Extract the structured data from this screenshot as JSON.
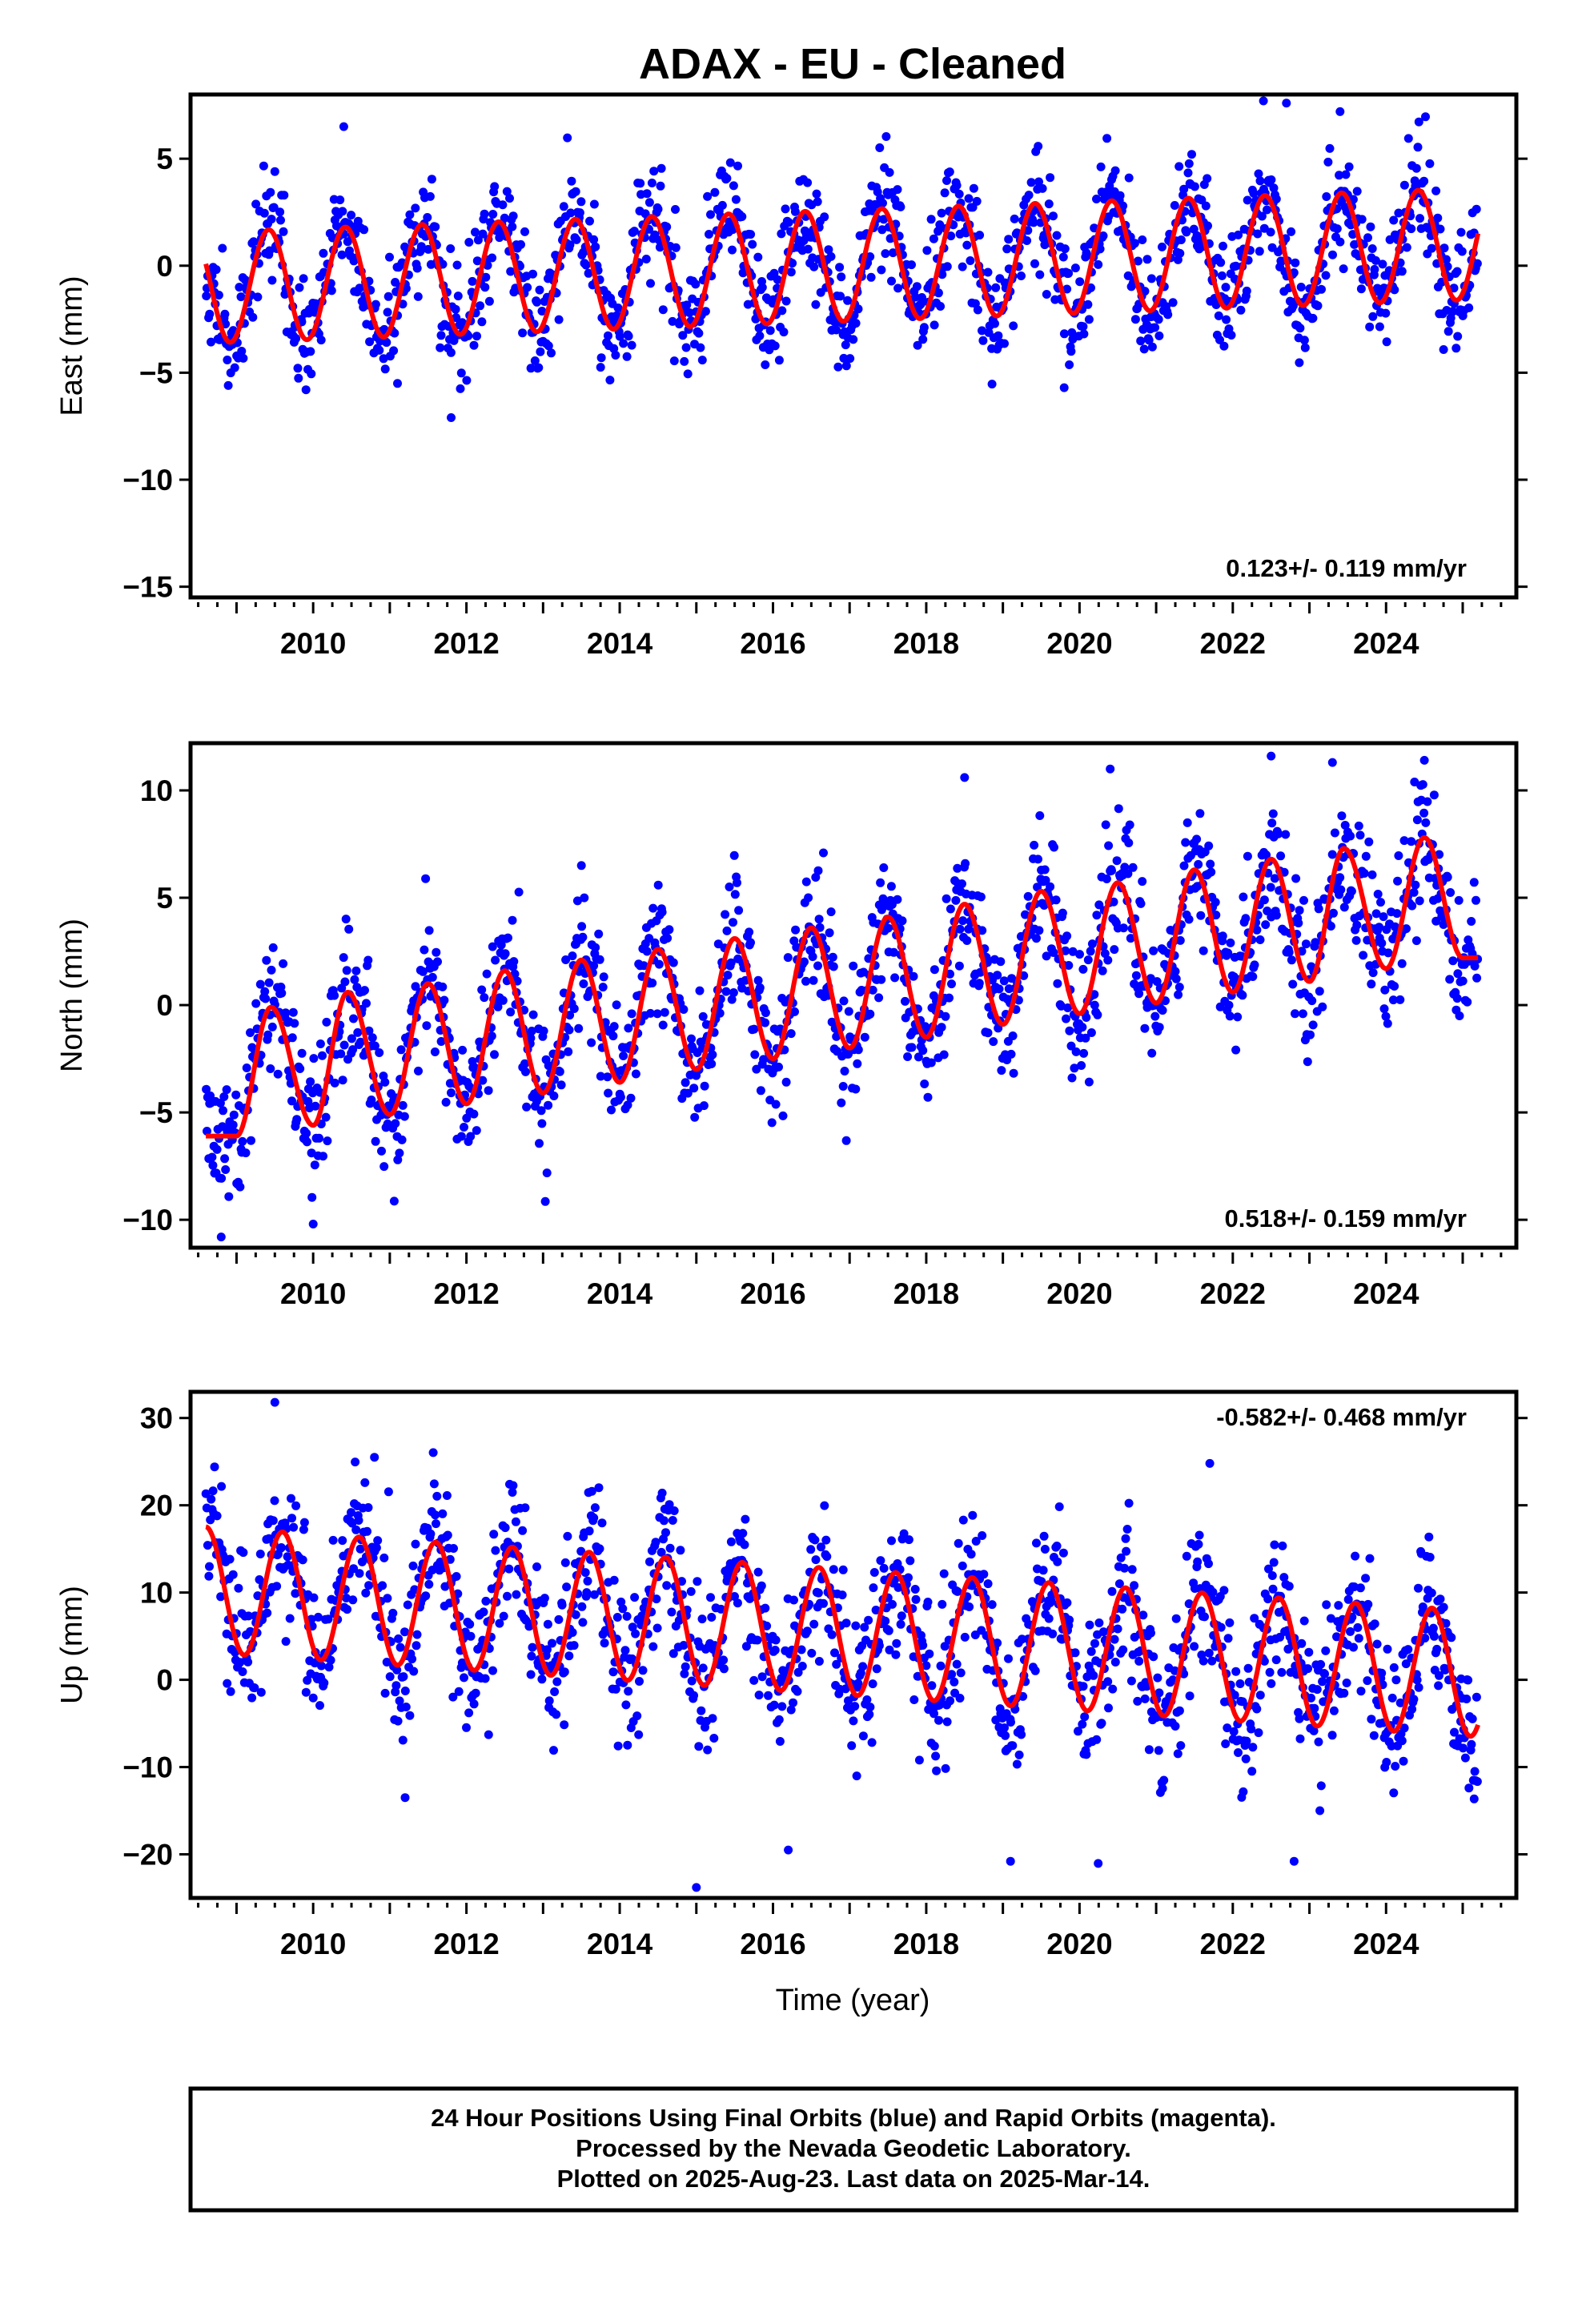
{
  "title": "ADAX  - EU - Cleaned",
  "colors": {
    "points": "#0000ff",
    "fit": "#ff0000",
    "frame": "#000000"
  },
  "time_axis_label": "Time (year)",
  "footer": {
    "line1": "24 Hour Positions Using Final Orbits (blue) and Rapid Orbits (magenta).",
    "line2": "Processed by the Nevada Geodetic Laboratory.",
    "line3": "Plotted on 2025-Aug-23. Last data on 2025-Mar-14."
  },
  "chart_data": [
    {
      "type": "scatter",
      "ylabel": "East (mm)",
      "xlabel": "",
      "rate_label": "0.123+/- 0.119 mm/yr",
      "rate_position": "bottom-right",
      "xlim": [
        2008.4,
        2025.7
      ],
      "ylim": [
        -15.5,
        8
      ],
      "x_ticks": [
        2010,
        2012,
        2014,
        2016,
        2018,
        2020,
        2022,
        2024
      ],
      "y_ticks": [
        -15,
        -10,
        -5,
        0,
        5
      ],
      "data_span": [
        2008.6,
        2025.2
      ],
      "series": [
        {
          "kind": "points",
          "description": "daily positions",
          "scatter_sd": 1.3,
          "outliers": [
            [
              2011.8,
              -7.1
            ],
            [
              2010.4,
              6.5
            ],
            [
              2022.4,
              7.7
            ],
            [
              2022.7,
              7.6
            ],
            [
              2023.4,
              7.2
            ],
            [
              2011.1,
              -5.5
            ],
            [
              2019.8,
              -5.7
            ]
          ]
        },
        {
          "kind": "model_fit",
          "offset": 0.0,
          "rate": 0.123,
          "annual_amplitude": 2.6,
          "peak_phase": 0.42
        }
      ]
    },
    {
      "type": "scatter",
      "ylabel": "North (mm)",
      "xlabel": "",
      "rate_label": "0.518+/- 0.159 mm/yr",
      "rate_position": "bottom-right",
      "xlim": [
        2008.4,
        2025.7
      ],
      "ylim": [
        -11.3,
        12.2
      ],
      "x_ticks": [
        2010,
        2012,
        2014,
        2016,
        2018,
        2020,
        2022,
        2024
      ],
      "y_ticks": [
        -10,
        -5,
        0,
        5,
        10
      ],
      "data_span": [
        2008.6,
        2025.2
      ],
      "series": [
        {
          "kind": "points",
          "description": "daily positions",
          "scatter_sd": 1.5,
          "outliers": [
            [
              2013.5,
              6.5
            ],
            [
              2008.8,
              -10.8
            ],
            [
              2010.0,
              -10.2
            ],
            [
              2022.5,
              11.6
            ],
            [
              2023.3,
              11.3
            ],
            [
              2024.5,
              11.4
            ],
            [
              2018.5,
              10.6
            ],
            [
              2020.4,
              11.0
            ]
          ]
        },
        {
          "kind": "model_fit",
          "breakpoints": [
            [
              2008.6,
              -6.1
            ],
            [
              2009.45,
              -0.1
            ],
            [
              2010.45,
              0.6
            ],
            [
              2011.5,
              1.0
            ],
            [
              2012.5,
              1.6
            ],
            [
              2013.5,
              2.1
            ],
            [
              2014.5,
              2.6
            ],
            [
              2015.5,
              3.1
            ],
            [
              2016.5,
              3.6
            ],
            [
              2017.5,
              4.1
            ],
            [
              2018.5,
              4.7
            ],
            [
              2019.5,
              5.3
            ],
            [
              2020.5,
              5.7
            ],
            [
              2021.5,
              6.3
            ],
            [
              2022.5,
              6.8
            ],
            [
              2023.45,
              7.3
            ],
            [
              2024.5,
              7.8
            ]
          ],
          "troughs": [
            [
              2009.0,
              -6.1
            ],
            [
              2010.0,
              -5.6
            ],
            [
              2011.0,
              -5.1
            ],
            [
              2012.0,
              -4.6
            ],
            [
              2013.0,
              -4.1
            ],
            [
              2014.0,
              -3.6
            ],
            [
              2015.0,
              -3.0
            ],
            [
              2016.0,
              -2.5
            ],
            [
              2017.0,
              -2.0
            ],
            [
              2018.0,
              -1.5
            ],
            [
              2019.0,
              -0.9
            ],
            [
              2020.0,
              -0.4
            ],
            [
              2021.0,
              0.1
            ],
            [
              2022.0,
              0.6
            ],
            [
              2023.0,
              1.1
            ],
            [
              2024.0,
              1.7
            ],
            [
              2025.0,
              2.2
            ]
          ]
        }
      ]
    },
    {
      "type": "scatter",
      "ylabel": "Up (mm)",
      "xlabel": "Time (year)",
      "rate_label": "-0.582+/- 0.468 mm/yr",
      "rate_position": "top-right",
      "xlim": [
        2008.4,
        2025.7
      ],
      "ylim": [
        -25,
        33
      ],
      "x_ticks": [
        2010,
        2012,
        2014,
        2016,
        2018,
        2020,
        2022,
        2024
      ],
      "y_ticks": [
        -20,
        -10,
        0,
        10,
        20,
        30
      ],
      "data_span": [
        2008.6,
        2025.2
      ],
      "series": [
        {
          "kind": "points",
          "description": "daily positions",
          "scatter_sd": 4.2,
          "outliers": [
            [
              2009.5,
              31.8
            ],
            [
              2010.8,
              25.5
            ],
            [
              2021.7,
              24.8
            ],
            [
              2015.0,
              -23.8
            ],
            [
              2019.1,
              -20.8
            ],
            [
              2022.8,
              -20.8
            ],
            [
              2016.2,
              -19.5
            ],
            [
              2011.2,
              -13.5
            ]
          ]
        },
        {
          "kind": "model_fit",
          "offset": 5.5,
          "rate": -0.582,
          "annual_amplitude": 7.2,
          "peak_phase": 0.6
        }
      ]
    }
  ]
}
